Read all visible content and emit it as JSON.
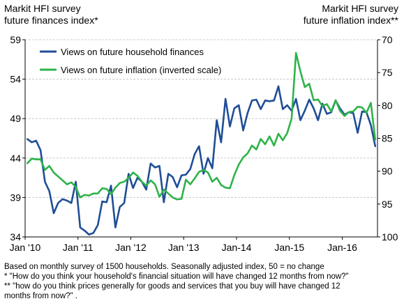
{
  "header": {
    "left_title": [
      "Markit HFI survey",
      "future finances index*"
    ],
    "right_title": [
      "Markit HFI survey",
      "future inflation index**"
    ]
  },
  "footnotes": [
    "Based on monthly survey of 1500 households. Seasonally adjusted index, 50 = no change",
    "* \"How do you think your household's  financial situation will have changed 12 months  from now?\"",
    "** \"how do you think prices generally for goods and services that you buy will have changed 12",
    "months from now?\"  ."
  ],
  "chart_data": {
    "type": "line",
    "x_start": "Jan 2010",
    "x_end": "Nov 2016",
    "x_tick_labels": [
      "Jan '10",
      "Jan '11",
      "Jan '12",
      "Jan '13",
      "Jan-14",
      "Jan-15",
      "Jan-16"
    ],
    "left_axis": {
      "ylim": [
        34,
        59
      ],
      "ticks": [
        34,
        39,
        44,
        49,
        54,
        59
      ]
    },
    "right_axis": {
      "ylim": [
        100,
        70
      ],
      "inverted": true,
      "ticks": [
        100,
        95,
        90,
        85,
        80,
        75,
        70
      ]
    },
    "grid": "horizontal",
    "legend_position": "top-left",
    "series": [
      {
        "name": "Views on future household finances",
        "color": "#1f4e96",
        "axis": "left",
        "values": [
          46.4,
          46.0,
          46.2,
          45.0,
          41.0,
          39.8,
          37.0,
          38.3,
          38.8,
          38.6,
          38.3,
          41.0,
          35.2,
          34.8,
          34.3,
          34.5,
          35.5,
          38.5,
          38.4,
          40.5,
          35.2,
          37.8,
          38.3,
          42.0,
          40.2,
          41.5,
          41.0,
          40.0,
          43.3,
          42.8,
          43.0,
          38.4,
          42.0,
          41.6,
          40.3,
          41.8,
          41.9,
          42.6,
          44.5,
          45.5,
          42.0,
          44.0,
          42.7,
          48.8,
          46.0,
          51.5,
          48.0,
          50.3,
          50.7,
          47.5,
          49.7,
          51.3,
          51.4,
          50.2,
          51.3,
          51.2,
          51.3,
          53.1,
          50.2,
          50.7,
          50.0,
          51.5,
          48.8,
          50.0,
          51.4,
          50.3,
          48.8,
          50.9,
          49.6,
          49.8,
          51.3,
          50.3,
          49.5,
          49.8,
          49.7,
          47.2,
          49.9,
          49.8,
          48.2,
          45.5
        ]
      },
      {
        "name": "Views on future inflation (inverted scale)",
        "color": "#2eb34a",
        "axis": "right",
        "values": [
          88.8,
          88.1,
          88.2,
          88.2,
          89.8,
          89.2,
          90.2,
          90.8,
          91.4,
          92.0,
          91.7,
          92.4,
          94.0,
          93.6,
          93.7,
          93.4,
          93.4,
          92.6,
          92.7,
          93.5,
          92.5,
          91.8,
          91.6,
          91.0,
          90.2,
          90.7,
          91.6,
          92.2,
          91.4,
          92.0,
          93.9,
          92.8,
          93.4,
          94.0,
          94.3,
          94.2,
          91.3,
          92.0,
          91.1,
          90.1,
          89.8,
          90.2,
          91.6,
          91.0,
          92.1,
          92.5,
          92.6,
          90.6,
          89.0,
          87.9,
          87.3,
          86.1,
          86.7,
          85.1,
          85.9,
          84.7,
          86.1,
          84.3,
          85.3,
          84.2,
          82.0,
          72.0,
          74.8,
          77.2,
          76.7,
          79.2,
          79.1,
          80.1,
          79.8,
          80.9,
          79.2,
          80.8,
          81.6,
          81.0,
          80.9,
          80.2,
          80.3,
          81.1,
          79.6,
          85.2
        ]
      }
    ]
  }
}
